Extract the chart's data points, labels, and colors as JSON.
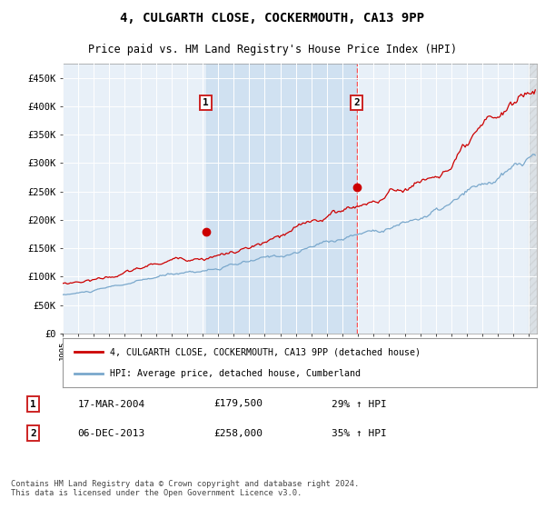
{
  "title": "4, CULGARTH CLOSE, COCKERMOUTH, CA13 9PP",
  "subtitle": "Price paid vs. HM Land Registry's House Price Index (HPI)",
  "xlim_start": 1995.0,
  "xlim_end": 2025.5,
  "ylim": [
    0,
    475000
  ],
  "yticks": [
    0,
    50000,
    100000,
    150000,
    200000,
    250000,
    300000,
    350000,
    400000,
    450000
  ],
  "ytick_labels": [
    "£0",
    "£50K",
    "£100K",
    "£150K",
    "£200K",
    "£250K",
    "£300K",
    "£350K",
    "£400K",
    "£450K"
  ],
  "xtick_years": [
    1995,
    1996,
    1997,
    1998,
    1999,
    2000,
    2001,
    2002,
    2003,
    2004,
    2005,
    2006,
    2007,
    2008,
    2009,
    2010,
    2011,
    2012,
    2013,
    2014,
    2015,
    2016,
    2017,
    2018,
    2019,
    2020,
    2021,
    2022,
    2023,
    2024,
    2025
  ],
  "sale1_x": 2004.21,
  "sale1_y": 179500,
  "sale2_x": 2013.92,
  "sale2_y": 258000,
  "red_line_color": "#cc0000",
  "blue_line_color": "#7aa8cc",
  "dashed_line_color": "#ff4444",
  "shade_color": "#ccdff0",
  "plot_bg_color": "#e8f0f8",
  "grid_color": "#ffffff",
  "legend_label_red": "4, CULGARTH CLOSE, COCKERMOUTH, CA13 9PP (detached house)",
  "legend_label_blue": "HPI: Average price, detached house, Cumberland",
  "table_row1": [
    "1",
    "17-MAR-2004",
    "£179,500",
    "29% ↑ HPI"
  ],
  "table_row2": [
    "2",
    "06-DEC-2013",
    "£258,000",
    "35% ↑ HPI"
  ],
  "footnote": "Contains HM Land Registry data © Crown copyright and database right 2024.\nThis data is licensed under the Open Government Licence v3.0."
}
